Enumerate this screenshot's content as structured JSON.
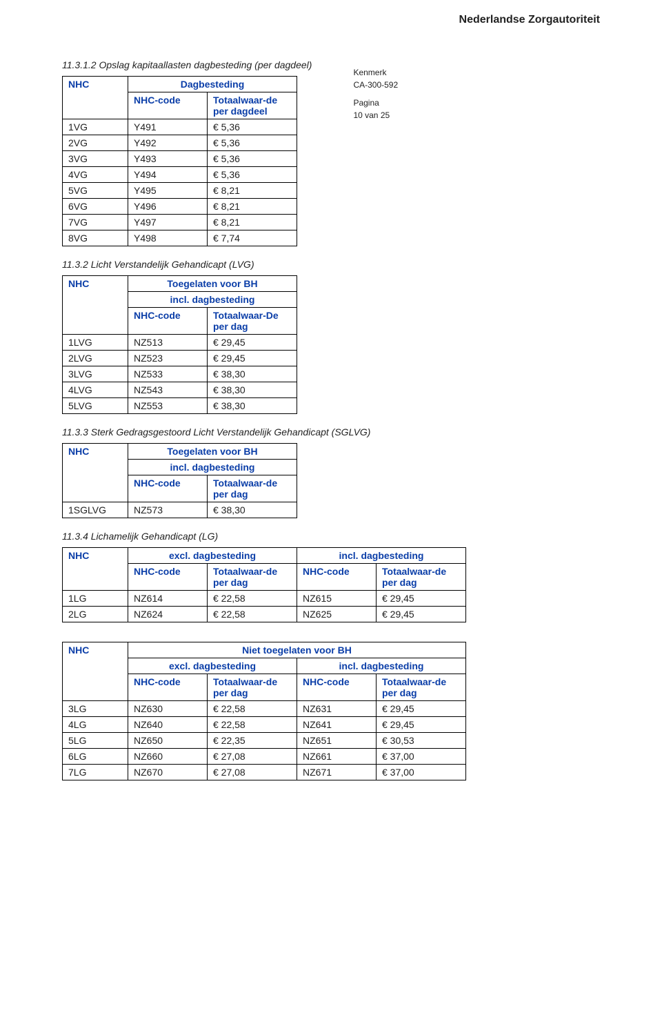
{
  "org_name": "Nederlandse Zorgautoriteit",
  "meta": {
    "kenmerk_label": "Kenmerk",
    "kenmerk_value": "CA-300-592",
    "pagina_label": "Pagina",
    "pagina_value": "10 van 25"
  },
  "colors": {
    "text": "#222222",
    "header_blue": "#0b3ea8",
    "border": "#000000",
    "background": "#ffffff"
  },
  "s1": {
    "heading": "11.3.1.2 Opslag kapitaallasten dagbesteding (per dagdeel)",
    "nhc": "NHC",
    "dagbesteding": "Dagbesteding",
    "nhc_code": "NHC-code",
    "totaal": "Totaalwaar-de per dagdeel",
    "rows": [
      {
        "label": "1VG",
        "code": "Y491",
        "val": "€ 5,36"
      },
      {
        "label": "2VG",
        "code": "Y492",
        "val": "€ 5,36"
      },
      {
        "label": "3VG",
        "code": "Y493",
        "val": "€ 5,36"
      },
      {
        "label": "4VG",
        "code": "Y494",
        "val": "€ 5,36"
      },
      {
        "label": "5VG",
        "code": "Y495",
        "val": "€ 8,21"
      },
      {
        "label": "6VG",
        "code": "Y496",
        "val": "€ 8,21"
      },
      {
        "label": "7VG",
        "code": "Y497",
        "val": "€ 8,21"
      },
      {
        "label": "8VG",
        "code": "Y498",
        "val": "€ 7,74"
      }
    ]
  },
  "s2": {
    "heading": "11.3.2 Licht Verstandelijk Gehandicapt (LVG)",
    "nhc": "NHC",
    "toegelaten": "Toegelaten voor BH",
    "incl": "incl. dagbesteding",
    "nhc_code": "NHC-code",
    "totaal": "Totaalwaar-De per dag",
    "rows": [
      {
        "label": "1LVG",
        "code": "NZ513",
        "val": "€ 29,45"
      },
      {
        "label": "2LVG",
        "code": "NZ523",
        "val": "€ 29,45"
      },
      {
        "label": "3LVG",
        "code": "NZ533",
        "val": "€ 38,30"
      },
      {
        "label": "4LVG",
        "code": "NZ543",
        "val": "€ 38,30"
      },
      {
        "label": "5LVG",
        "code": "NZ553",
        "val": "€ 38,30"
      }
    ]
  },
  "s3": {
    "heading": "11.3.3 Sterk Gedragsgestoord Licht Verstandelijk Gehandicapt (SGLVG)",
    "nhc": "NHC",
    "toegelaten": "Toegelaten voor BH",
    "incl": "incl. dagbesteding",
    "nhc_code": "NHC-code",
    "totaal": "Totaalwaar-de per dag",
    "rows": [
      {
        "label": "1SGLVG",
        "code": "NZ573",
        "val": "€ 38,30"
      }
    ]
  },
  "s4a": {
    "heading": "11.3.4 Lichamelijk Gehandicapt (LG)",
    "nhc": "NHC",
    "excl": "excl. dagbesteding",
    "incl": "incl. dagbesteding",
    "nhc_code": "NHC-code",
    "totaal": "Totaalwaar-de per dag",
    "rows": [
      {
        "label": "1LG",
        "code1": "NZ614",
        "val1": "€ 22,58",
        "code2": "NZ615",
        "val2": "€ 29,45"
      },
      {
        "label": "2LG",
        "code1": "NZ624",
        "val1": "€ 22,58",
        "code2": "NZ625",
        "val2": "€ 29,45"
      }
    ]
  },
  "s4b": {
    "nhc": "NHC",
    "niet": "Niet toegelaten voor BH",
    "excl": "excl. dagbesteding",
    "incl": "incl. dagbesteding",
    "nhc_code": "NHC-code",
    "totaal": "Totaalwaar-de per dag",
    "rows": [
      {
        "label": "3LG",
        "code1": "NZ630",
        "val1": "€ 22,58",
        "code2": "NZ631",
        "val2": "€ 29,45"
      },
      {
        "label": "4LG",
        "code1": "NZ640",
        "val1": "€ 22,58",
        "code2": "NZ641",
        "val2": "€ 29,45"
      },
      {
        "label": "5LG",
        "code1": "NZ650",
        "val1": "€ 22,35",
        "code2": "NZ651",
        "val2": "€ 30,53"
      },
      {
        "label": "6LG",
        "code1": "NZ660",
        "val1": "€ 27,08",
        "code2": "NZ661",
        "val2": "€ 37,00"
      },
      {
        "label": "7LG",
        "code1": "NZ670",
        "val1": "€ 27,08",
        "code2": "NZ671",
        "val2": "€ 37,00"
      }
    ]
  }
}
